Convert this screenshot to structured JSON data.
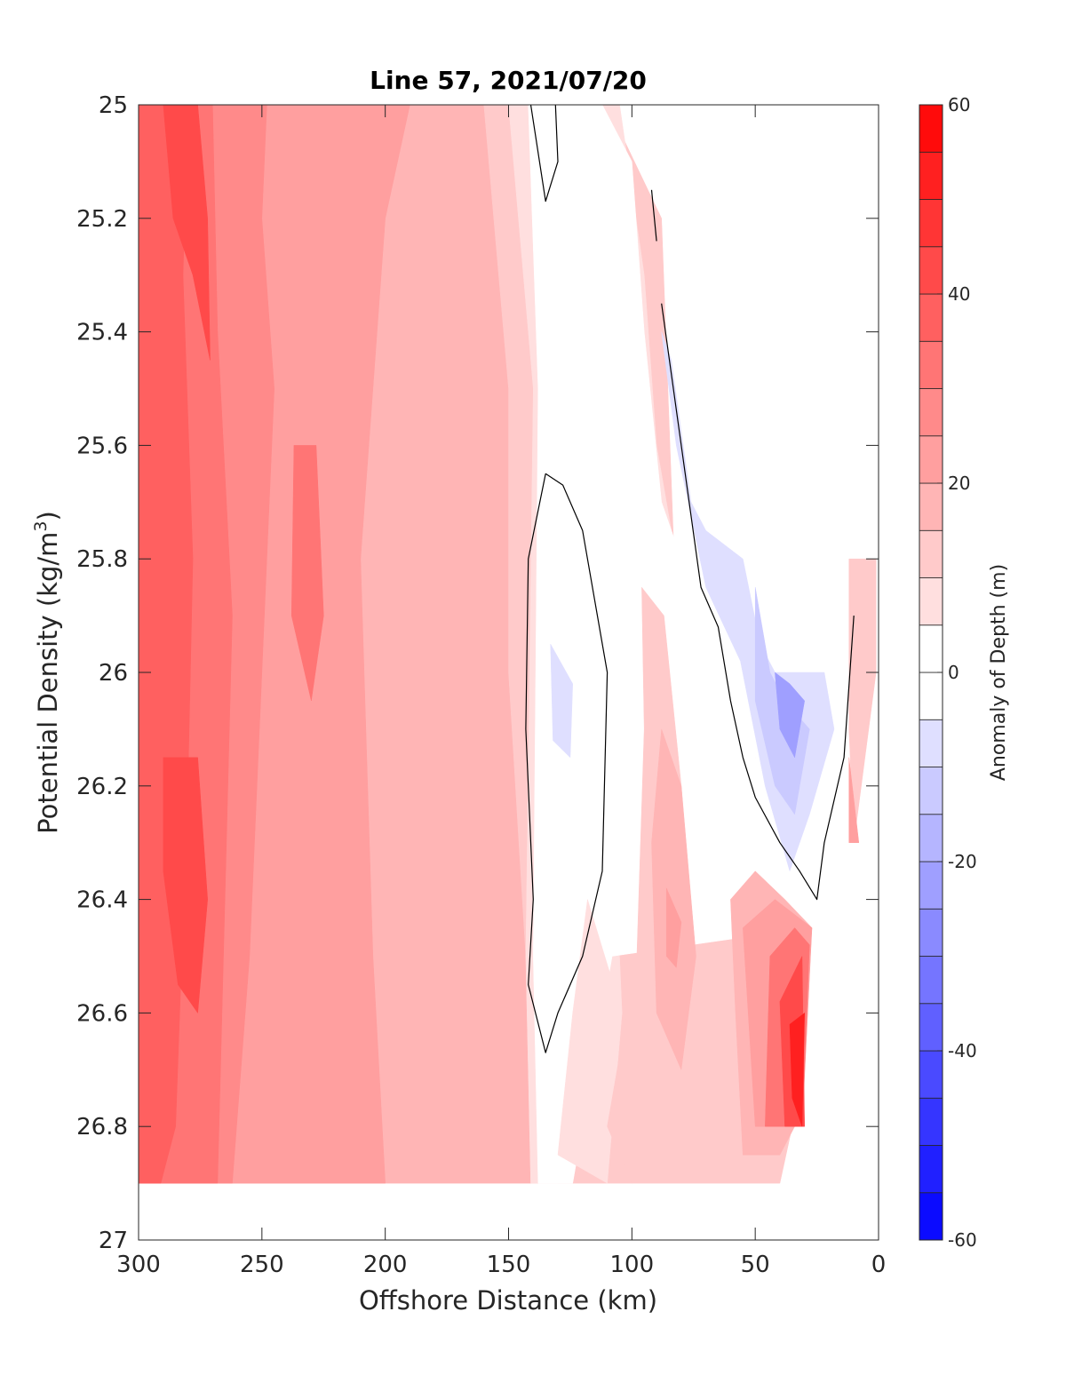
{
  "chart_data": {
    "type": "heatmap",
    "subtype": "filled-contour",
    "title": "Line 57, 2021/07/20",
    "xlabel": "Offshore Distance (km)",
    "ylabel": "Potential Density (kg/m",
    "ylabel_sup": "3",
    "ylabel_end": ")",
    "xlim": [
      300,
      0
    ],
    "ylim": [
      27,
      25
    ],
    "x_reversed": true,
    "y_reversed": true,
    "x_ticks": [
      300,
      250,
      200,
      150,
      100,
      50,
      0
    ],
    "x_tick_labels": [
      "300",
      "250",
      "200",
      "150",
      "100",
      "50",
      "0"
    ],
    "y_ticks": [
      25,
      25.2,
      25.4,
      25.6,
      25.8,
      26,
      26.2,
      26.4,
      26.6,
      26.8,
      27
    ],
    "y_tick_labels": [
      "25",
      "25.2",
      "25.4",
      "25.6",
      "25.8",
      "26",
      "26.2",
      "26.4",
      "26.6",
      "26.8",
      "27"
    ],
    "grid": false,
    "colorbar": {
      "label": "Anomaly of Depth (m)",
      "range": [
        -60,
        60
      ],
      "ticks": [
        60,
        40,
        20,
        0,
        -20,
        -40,
        -60
      ],
      "tick_labels": [
        "60",
        "40",
        "20",
        "0",
        "-20",
        "-40",
        "-60"
      ],
      "level_step": 5,
      "color_max": "#ff0000",
      "color_mid": "#ffffff",
      "color_min": "#0000ff",
      "placement": "right"
    },
    "zero_contour_color": "#000000",
    "regions": [
      {
        "level": 15,
        "poly": [
          [
            300,
            25
          ],
          [
            141,
            25
          ],
          [
            141,
            26.9
          ],
          [
            300,
            26.9
          ]
        ]
      },
      {
        "level": 20,
        "poly": [
          [
            300,
            25
          ],
          [
            190,
            25
          ],
          [
            200,
            25.2
          ],
          [
            210,
            25.8
          ],
          [
            205,
            26.5
          ],
          [
            200,
            26.9
          ],
          [
            300,
            26.9
          ]
        ]
      },
      {
        "level": 25,
        "poly": [
          [
            300,
            25
          ],
          [
            248,
            25
          ],
          [
            250,
            25.2
          ],
          [
            245,
            25.5
          ],
          [
            250,
            26
          ],
          [
            255,
            26.5
          ],
          [
            262,
            26.9
          ],
          [
            300,
            26.9
          ]
        ]
      },
      {
        "level": 30,
        "poly": [
          [
            300,
            25
          ],
          [
            270,
            25
          ],
          [
            268,
            25.4
          ],
          [
            262,
            25.9
          ],
          [
            265,
            26.4
          ],
          [
            268,
            26.9
          ],
          [
            300,
            26.9
          ]
        ]
      },
      {
        "level": 35,
        "poly": [
          [
            300,
            25
          ],
          [
            280,
            25
          ],
          [
            282,
            25.3
          ],
          [
            278,
            25.8
          ],
          [
            280,
            26.2
          ],
          [
            285,
            26.8
          ],
          [
            291,
            26.9
          ],
          [
            300,
            26.9
          ]
        ]
      },
      {
        "level": 40,
        "poly": [
          [
            290,
            25
          ],
          [
            276,
            25
          ],
          [
            272,
            25.2
          ],
          [
            271,
            25.45
          ],
          [
            278,
            25.3
          ],
          [
            286,
            25.2
          ]
        ]
      },
      {
        "level": 40,
        "poly": [
          [
            290,
            26.15
          ],
          [
            276,
            26.15
          ],
          [
            272,
            26.4
          ],
          [
            276,
            26.6
          ],
          [
            284,
            26.55
          ],
          [
            290,
            26.35
          ]
        ]
      },
      {
        "level": 30,
        "poly": [
          [
            237,
            25.6
          ],
          [
            228,
            25.6
          ],
          [
            225,
            25.9
          ],
          [
            230,
            26.05
          ],
          [
            238,
            25.9
          ]
        ]
      },
      {
        "level": 10,
        "poly": [
          [
            160,
            25
          ],
          [
            110,
            25
          ],
          [
            88,
            25.2
          ],
          [
            82,
            25.9
          ],
          [
            75,
            26.1
          ],
          [
            50,
            26.15
          ],
          [
            42,
            26.35
          ],
          [
            30,
            26.7
          ],
          [
            40,
            26.9
          ],
          [
            141,
            26.9
          ],
          [
            143,
            26.5
          ],
          [
            150,
            26
          ],
          [
            150,
            25.5
          ]
        ]
      },
      {
        "level": 5,
        "poly": [
          [
            150,
            25
          ],
          [
            125,
            25
          ],
          [
            105,
            25
          ],
          [
            95,
            25.3
          ],
          [
            90,
            25.6
          ],
          [
            82,
            25.8
          ],
          [
            100,
            25.85
          ],
          [
            110,
            26
          ],
          [
            104,
            26.6
          ],
          [
            120,
            26.8
          ],
          [
            130,
            26.9
          ],
          [
            141,
            26.9
          ],
          [
            143,
            26.5
          ],
          [
            140,
            25.5
          ]
        ]
      },
      {
        "level": 0,
        "poly": [
          [
            142,
            25
          ],
          [
            112,
            25
          ],
          [
            100,
            25.1
          ],
          [
            95,
            25.4
          ],
          [
            88,
            25.7
          ],
          [
            80,
            25.8
          ],
          [
            60,
            25.9
          ],
          [
            50,
            26.15
          ],
          [
            36,
            26.35
          ],
          [
            28,
            26.45
          ],
          [
            108,
            26.5
          ],
          [
            124,
            26.9
          ],
          [
            138,
            26.9
          ],
          [
            140,
            26.5
          ],
          [
            138,
            25.5
          ]
        ]
      },
      {
        "level": 5,
        "poly": [
          [
            130,
            26.85
          ],
          [
            124,
            26.6
          ],
          [
            118,
            26.4
          ],
          [
            104,
            26.6
          ],
          [
            110,
            26.9
          ]
        ]
      },
      {
        "level": 10,
        "poly": [
          [
            96,
            25.85
          ],
          [
            87,
            25.9
          ],
          [
            80,
            26.2
          ],
          [
            75,
            26.5
          ],
          [
            72,
            26.75
          ],
          [
            80,
            26.85
          ],
          [
            100,
            26.9
          ],
          [
            110,
            26.8
          ],
          [
            98,
            26.5
          ],
          [
            95,
            26.1
          ]
        ]
      },
      {
        "level": 15,
        "poly": [
          [
            88,
            26.1
          ],
          [
            80,
            26.2
          ],
          [
            74,
            26.5
          ],
          [
            80,
            26.7
          ],
          [
            90,
            26.6
          ],
          [
            92,
            26.3
          ]
        ]
      },
      {
        "level": 20,
        "poly": [
          [
            86,
            26.38
          ],
          [
            80,
            26.44
          ],
          [
            82,
            26.52
          ],
          [
            86,
            26.5
          ]
        ]
      },
      {
        "level": 15,
        "poly": [
          [
            60,
            26.4
          ],
          [
            50,
            26.35
          ],
          [
            38,
            26.4
          ],
          [
            27,
            26.45
          ],
          [
            34,
            26.8
          ],
          [
            40,
            26.85
          ],
          [
            55,
            26.85
          ],
          [
            58,
            26.6
          ]
        ]
      },
      {
        "level": 20,
        "poly": [
          [
            55,
            26.45
          ],
          [
            42,
            26.4
          ],
          [
            27,
            26.45
          ],
          [
            31,
            26.8
          ],
          [
            50,
            26.8
          ]
        ]
      },
      {
        "level": 30,
        "poly": [
          [
            44,
            26.5
          ],
          [
            34,
            26.45
          ],
          [
            28,
            26.48
          ],
          [
            31,
            26.8
          ],
          [
            46,
            26.8
          ]
        ]
      },
      {
        "level": 40,
        "poly": [
          [
            40,
            26.58
          ],
          [
            31,
            26.5
          ],
          [
            30,
            26.8
          ],
          [
            38,
            26.8
          ]
        ]
      },
      {
        "level": 50,
        "poly": [
          [
            36,
            26.62
          ],
          [
            30,
            26.6
          ],
          [
            31,
            26.8
          ],
          [
            35,
            26.75
          ]
        ]
      },
      {
        "level": -5,
        "poly": [
          [
            88,
            25.4
          ],
          [
            84,
            25.45
          ],
          [
            76,
            25.7
          ],
          [
            70,
            25.75
          ],
          [
            55,
            25.8
          ],
          [
            48,
            25.95
          ],
          [
            42,
            26.0
          ],
          [
            22,
            26.0
          ],
          [
            18,
            26.1
          ],
          [
            28,
            26.25
          ],
          [
            36,
            26.35
          ],
          [
            46,
            26.2
          ],
          [
            56,
            25.98
          ],
          [
            70,
            25.85
          ],
          [
            82,
            25.6
          ]
        ]
      },
      {
        "level": -10,
        "poly": [
          [
            50,
            25.85
          ],
          [
            44,
            26.0
          ],
          [
            38,
            26.05
          ],
          [
            28,
            26.1
          ],
          [
            34,
            26.25
          ],
          [
            42,
            26.2
          ],
          [
            50,
            26.05
          ]
        ]
      },
      {
        "level": -20,
        "poly": [
          [
            42,
            26.0
          ],
          [
            36,
            26.02
          ],
          [
            30,
            26.05
          ],
          [
            34,
            26.15
          ],
          [
            40,
            26.1
          ]
        ]
      },
      {
        "level": -5,
        "poly": [
          [
            133,
            25.95
          ],
          [
            124,
            26.02
          ],
          [
            125,
            26.15
          ],
          [
            132,
            26.12
          ]
        ]
      },
      {
        "level": 10,
        "poly": [
          [
            12,
            25.8
          ],
          [
            1,
            25.8
          ],
          [
            1,
            26.0
          ],
          [
            10,
            26.3
          ],
          [
            12,
            26.1
          ]
        ]
      },
      {
        "level": 20,
        "poly": [
          [
            12,
            26.15
          ],
          [
            8,
            26.3
          ],
          [
            12,
            26.3
          ]
        ]
      }
    ],
    "zero_contours": [
      [
        [
          141,
          25
        ],
        [
          135,
          25.17
        ],
        [
          130,
          25.1
        ],
        [
          131,
          25
        ]
      ],
      [
        [
          92,
          25.15
        ],
        [
          90,
          25.24
        ]
      ],
      [
        [
          88,
          25.35
        ],
        [
          80,
          25.6
        ],
        [
          72,
          25.85
        ],
        [
          65,
          25.92
        ],
        [
          60,
          26.05
        ],
        [
          55,
          26.15
        ],
        [
          50,
          26.22
        ],
        [
          40,
          26.3
        ],
        [
          32,
          26.35
        ],
        [
          25,
          26.4
        ],
        [
          22,
          26.3
        ],
        [
          14,
          26.15
        ],
        [
          10,
          25.9
        ]
      ],
      [
        [
          135,
          25.65
        ],
        [
          128,
          25.67
        ],
        [
          120,
          25.75
        ],
        [
          110,
          26.0
        ],
        [
          112,
          26.35
        ],
        [
          120,
          26.5
        ],
        [
          130,
          26.6
        ],
        [
          135,
          26.67
        ],
        [
          142,
          26.55
        ],
        [
          140,
          26.4
        ],
        [
          143,
          26.1
        ],
        [
          142,
          25.8
        ],
        [
          135,
          25.65
        ]
      ]
    ]
  }
}
